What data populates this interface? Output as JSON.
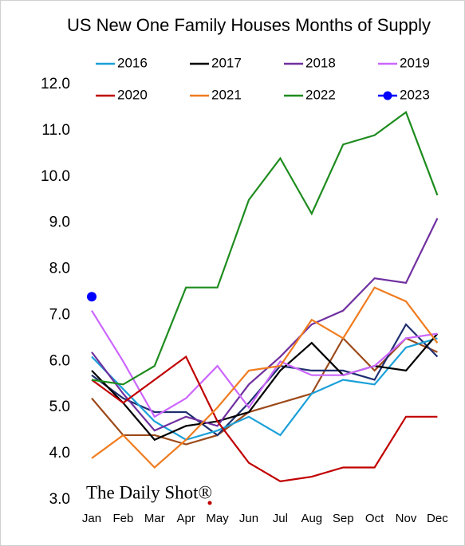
{
  "chart_data": {
    "type": "line",
    "title": "US New One Family Houses Months of Supply",
    "watermark": "The Daily Shot®",
    "categories": [
      "Jan",
      "Feb",
      "Mar",
      "Apr",
      "May",
      "Jun",
      "Jul",
      "Aug",
      "Sep",
      "Oct",
      "Nov",
      "Dec"
    ],
    "ylim": [
      3,
      12
    ],
    "yticks": [
      {
        "value": 3,
        "label": "3.0"
      },
      {
        "value": 4,
        "label": "4.0"
      },
      {
        "value": 5,
        "label": "5.0"
      },
      {
        "value": 6,
        "label": "6.0"
      },
      {
        "value": 7,
        "label": "7.0"
      },
      {
        "value": 8,
        "label": "8.0"
      },
      {
        "value": 9,
        "label": "9.0"
      },
      {
        "value": 10,
        "label": "10.0"
      },
      {
        "value": 11,
        "label": "11.0"
      },
      {
        "value": 12,
        "label": "12.0"
      }
    ],
    "grid": false,
    "series": [
      {
        "color": "#9c4a1a",
        "values": [
          5.2,
          4.4,
          4.4,
          4.2,
          4.4,
          4.9,
          5.1,
          5.3,
          6.5,
          5.8,
          6.5,
          6.2
        ]
      },
      {
        "color": "#1f2f6f",
        "values": [
          5.7,
          5.2,
          4.9,
          4.9,
          4.4,
          5.1,
          5.9,
          5.8,
          5.8,
          5.6,
          6.8,
          6.1
        ]
      },
      {
        "name": "2016",
        "color": "#1ba0d8",
        "values": [
          6.1,
          5.4,
          4.7,
          4.3,
          4.5,
          4.8,
          4.4,
          5.3,
          5.6,
          5.5,
          6.3,
          6.5
        ]
      },
      {
        "name": "2017",
        "color": "#000000",
        "values": [
          5.8,
          5.1,
          4.3,
          4.6,
          4.7,
          4.9,
          5.8,
          6.4,
          5.7,
          5.9,
          5.8,
          6.6
        ]
      },
      {
        "name": "2018",
        "color": "#7030a0",
        "values": [
          6.2,
          5.3,
          4.5,
          4.8,
          4.6,
          5.5,
          6.1,
          6.8,
          7.1,
          7.8,
          7.7,
          9.1
        ]
      },
      {
        "name": "2019",
        "color": "#cc66ff",
        "values": [
          7.1,
          6.0,
          4.8,
          5.2,
          5.9,
          5.0,
          6.0,
          5.7,
          5.7,
          5.9,
          6.5,
          6.6
        ]
      },
      {
        "name": "2020",
        "color": "#c00000",
        "values": [
          5.6,
          5.1,
          5.6,
          6.1,
          4.7,
          3.8,
          3.4,
          3.5,
          3.7,
          3.7,
          4.8,
          4.8
        ]
      },
      {
        "name": "2021",
        "color": "#f07c1f",
        "values": [
          3.9,
          4.4,
          3.7,
          4.3,
          5.0,
          5.8,
          5.9,
          6.9,
          6.5,
          7.6,
          7.3,
          6.4
        ]
      },
      {
        "name": "2022",
        "color": "#1e8c1e",
        "values": [
          5.6,
          5.5,
          5.9,
          7.6,
          7.6,
          9.5,
          10.4,
          9.2,
          10.7,
          10.9,
          11.4,
          9.6
        ]
      },
      {
        "name": "2023",
        "color": "#0000ff",
        "marker": true,
        "values": [
          7.4,
          null,
          null,
          null,
          null,
          null,
          null,
          null,
          null,
          null,
          null,
          null
        ]
      }
    ]
  }
}
